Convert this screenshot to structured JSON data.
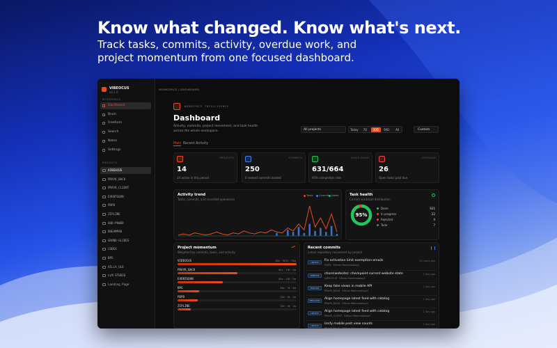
{
  "headline": "Know what changed. Know what's next.",
  "subheadline": "Track tasks, commits, activity, overdue work, and project momentum from one focused dashboard.",
  "app": {
    "brand": {
      "name": "VIBEOCUS",
      "version": "v0.1.0"
    },
    "nav_heading": "WORKSPACE",
    "nav": [
      "Dashboard",
      "Brain",
      "Freeform",
      "Search",
      "Notes",
      "Settings"
    ],
    "projects_heading": "PROJECTS",
    "projects": [
      "VIBEOCUS",
      "PRAYK_BACK",
      "PRAYK_CLIENT",
      "EVENTGOON",
      "PDPD",
      "ZIPLINE",
      "ADD-POWER",
      "DREAMPAD",
      "GRAND-SLIDES",
      "CODEX",
      "BPG",
      "VILLA_OLD",
      "LLM STUDIO",
      "Landing Page"
    ],
    "breadcrumb": "WORKSPACE / DASHBOARD",
    "eyebrow": "WORKSPACE INTELLIGENCE",
    "title": "Dashboard",
    "description": "Activity, commits, project movement, and task health across the whole workspace.",
    "project_filter": "All projects",
    "ranges": [
      "Today",
      "7D",
      "30D",
      "90D",
      "All"
    ],
    "active_range": 2,
    "custom": "Custom",
    "tabs": [
      "Main",
      "Recent Activity"
    ],
    "stats": [
      {
        "label": "PROJECTS",
        "value": "14",
        "note": "14 active in this period",
        "color": "#f04a1a"
      },
      {
        "label": "COMMITS",
        "value": "250",
        "note": "0 newest commits loaded",
        "color": "#3b82f6"
      },
      {
        "label": "TASKS DONE",
        "value": "631/664",
        "note": "95% completion rate",
        "color": "#22c55e"
      },
      {
        "label": "OVERDUE",
        "value": "26",
        "note": "Open tasks past due",
        "color": "#ef4444"
      }
    ],
    "activity_trend": {
      "type": "line",
      "title": "Activity trend",
      "subtitle": "Tasks, commits, and recorded operations",
      "ylim": [
        0,
        32
      ],
      "series": [
        {
          "name": "Tasks",
          "color": "#f04a1a",
          "values": [
            1,
            2,
            1,
            3,
            2,
            1,
            2,
            4,
            2,
            1,
            3,
            2,
            5,
            3,
            2,
            4,
            3,
            6,
            4,
            3,
            8,
            5,
            12,
            6,
            30,
            9,
            18,
            7,
            22,
            4
          ]
        },
        {
          "name": "Commits",
          "color": "#3b82f6",
          "values": [
            0,
            0,
            0,
            0,
            0,
            0,
            0,
            0,
            0,
            0,
            0,
            0,
            0,
            0,
            0,
            0,
            0,
            0,
            3,
            0,
            6,
            4,
            9,
            3,
            12,
            5,
            8,
            4,
            10,
            2
          ]
        },
        {
          "name": "Notes",
          "color": "#14b8a6",
          "values": [
            0,
            0,
            0,
            0,
            0,
            0,
            0,
            0,
            0,
            0,
            0,
            0,
            0,
            0,
            0,
            0,
            0,
            0,
            0,
            0,
            0,
            0,
            0,
            0,
            0,
            0,
            0,
            0,
            0,
            0
          ]
        }
      ]
    },
    "task_health": {
      "type": "pie",
      "title": "Task health",
      "subtitle": "Current workload distribution",
      "center_label": "95%",
      "categories": [
        "Done",
        "In progress",
        "Rejected",
        "Todo"
      ],
      "values": [
        631,
        22,
        4,
        7
      ],
      "colors": [
        "#22c55e",
        "#f04a1a",
        "#ef4444",
        "#6b7280"
      ]
    },
    "project_momentum": {
      "type": "bar",
      "title": "Project momentum",
      "subtitle": "Weighted by commits, tasks, and activity",
      "xlim": [
        0,
        100
      ],
      "categories": [
        "VIBEOCUS",
        "PRAYK_BACK",
        "EVENTGOON",
        "BPG",
        "PDPD",
        "ZIPLINE"
      ],
      "stats": [
        "16c · 337t · 74a",
        "40c · 10t · 5a",
        "45c · 10t · 5a",
        "40c · 3t · 4a",
        "20c · 5t · 2a",
        "20c · 4t · 1a"
      ],
      "values": [
        100,
        50,
        38,
        18,
        17,
        11
      ],
      "color": "#f04a1a"
    },
    "recent_commits": {
      "title": "Recent commits",
      "subtitle": "Latest repository movement by project",
      "items": [
        {
          "tag": "UPDATE",
          "message": "Fix activation limit exemption emails",
          "meta": "PDPD · Eltiran Mammadbayli",
          "time": "14 hours ago"
        },
        {
          "tag": "WEBSITE",
          "message": "chore(website): checkpoint current website state",
          "meta": "VIBEOCUS · Eltiran Mammadbayli",
          "time": "1 day ago"
        },
        {
          "tag": "FEATURE",
          "message": "Keep fake views in mobile API",
          "meta": "PRAYK_BACK · Eltiran Mammadbayli",
          "time": "1 day ago"
        },
        {
          "tag": "REFACTOR",
          "message": "Align homepage latest feed with catalog",
          "meta": "PRAYK_BACK · Eltiran Mammadbayli",
          "time": "1 day ago"
        },
        {
          "tag": "UPDATE",
          "message": "Align homepage latest feed with catalog",
          "meta": "PRAYK_CLIENT · Eltiran Mammadbayli",
          "time": "1 day ago"
        },
        {
          "tag": "UPDATE",
          "message": "Unify mobile post view counts",
          "meta": "PRAYK_BACK · Eltiran Mammadbayli",
          "time": "1 day ago"
        }
      ]
    }
  }
}
